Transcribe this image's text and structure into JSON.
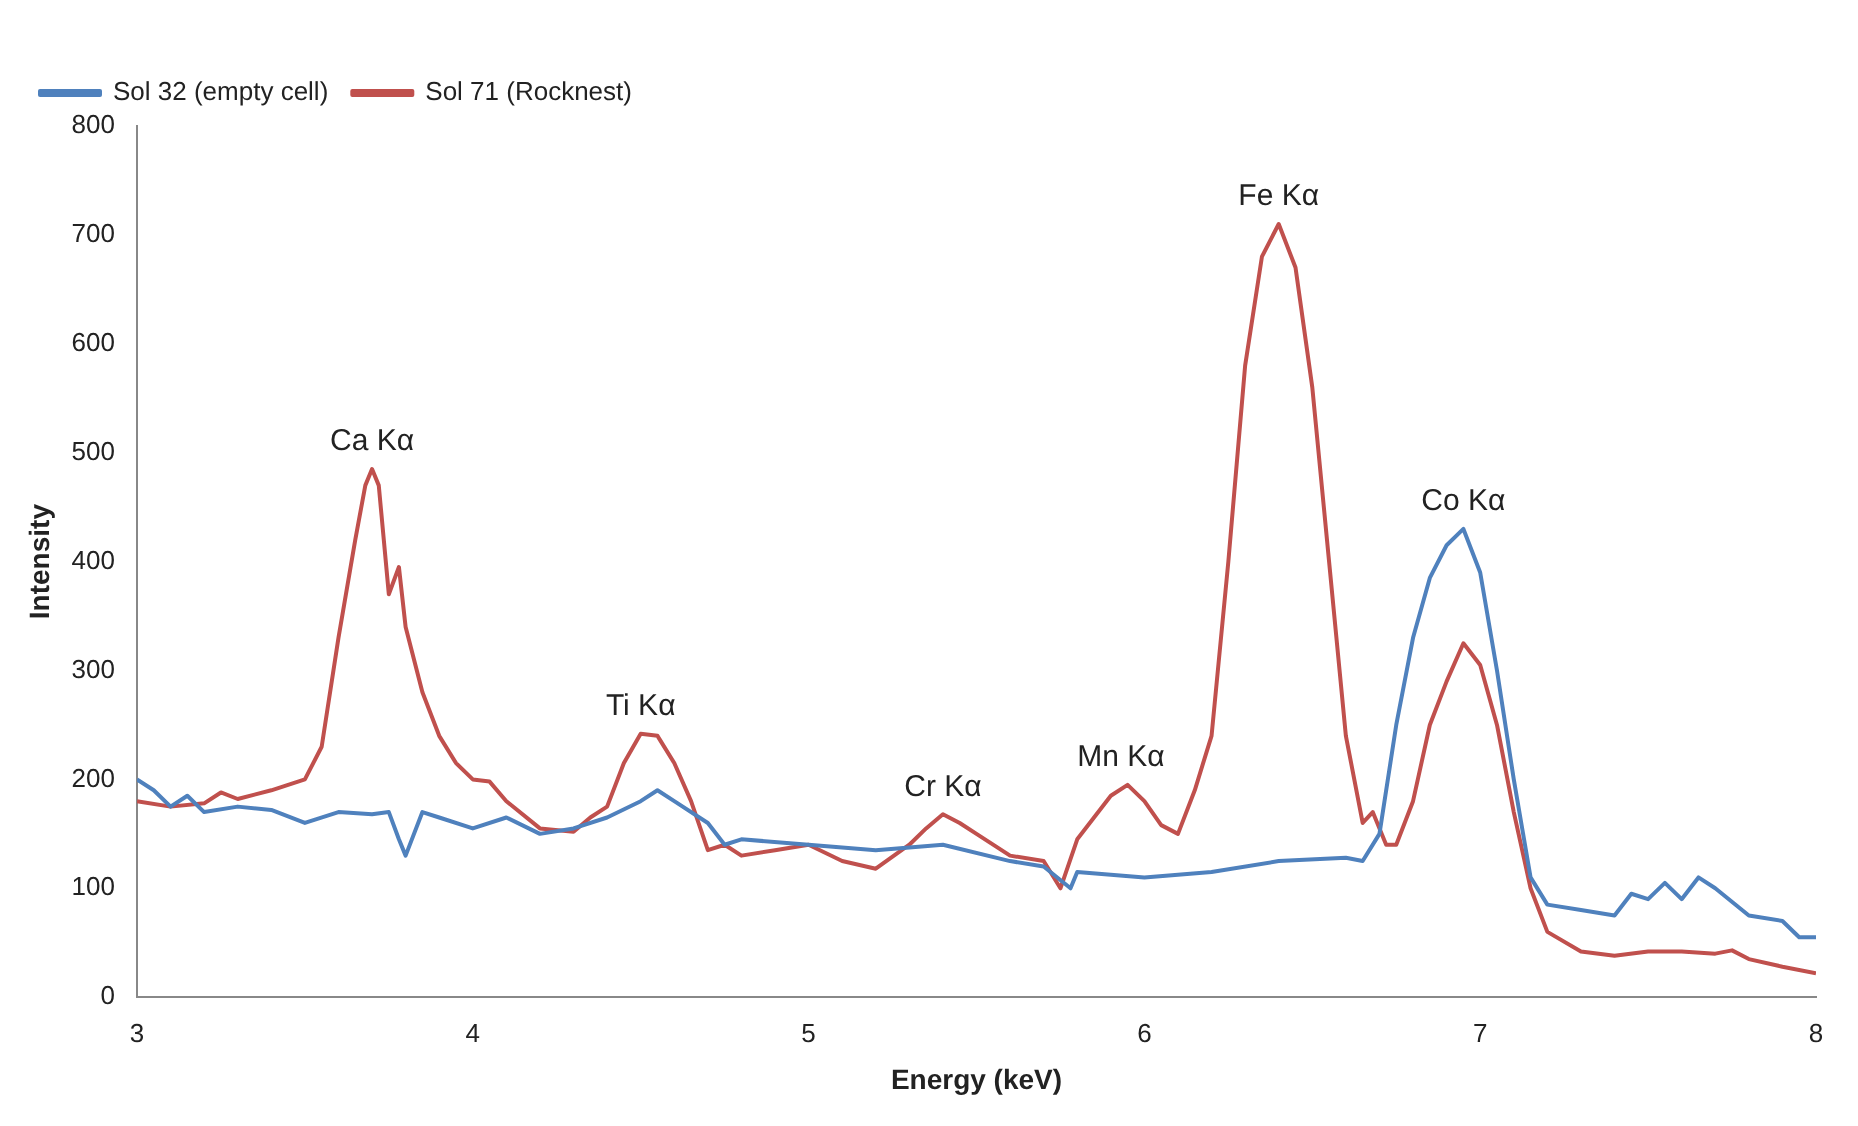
{
  "chart_data": {
    "type": "line",
    "xlabel": "Energy (keV)",
    "ylabel": "Intensity",
    "xlim": [
      3,
      8
    ],
    "xticks": [
      3,
      4,
      5,
      6,
      7,
      8
    ],
    "ylim": [
      0,
      800
    ],
    "yticks": [
      0,
      100,
      200,
      300,
      400,
      500,
      600,
      700,
      800
    ],
    "grid": false,
    "legend": "top left",
    "marker": "none",
    "line_style": "solid",
    "series": [
      {
        "name": "Sol 32 (empty cell)",
        "color": "#4f81bd",
        "x": [
          3.0,
          3.05,
          3.1,
          3.15,
          3.2,
          3.3,
          3.4,
          3.5,
          3.6,
          3.7,
          3.75,
          3.78,
          3.8,
          3.85,
          3.9,
          4.0,
          4.1,
          4.2,
          4.3,
          4.4,
          4.5,
          4.55,
          4.6,
          4.7,
          4.75,
          4.8,
          5.0,
          5.2,
          5.4,
          5.6,
          5.7,
          5.78,
          5.8,
          6.0,
          6.2,
          6.4,
          6.6,
          6.65,
          6.7,
          6.75,
          6.8,
          6.85,
          6.9,
          6.95,
          7.0,
          7.05,
          7.1,
          7.15,
          7.2,
          7.3,
          7.4,
          7.45,
          7.5,
          7.55,
          7.6,
          7.65,
          7.7,
          7.8,
          7.9,
          7.95,
          8.0
        ],
        "values": [
          200,
          190,
          175,
          185,
          170,
          175,
          172,
          160,
          170,
          168,
          170,
          145,
          130,
          170,
          165,
          155,
          165,
          150,
          155,
          165,
          180,
          190,
          180,
          160,
          140,
          145,
          140,
          135,
          140,
          125,
          120,
          100,
          115,
          110,
          115,
          125,
          128,
          125,
          150,
          250,
          330,
          385,
          415,
          430,
          390,
          300,
          200,
          110,
          85,
          80,
          75,
          95,
          90,
          105,
          90,
          110,
          100,
          75,
          70,
          55,
          55
        ]
      },
      {
        "name": "Sol 71 (Rocknest)",
        "color": "#c0504d",
        "x": [
          3.0,
          3.1,
          3.2,
          3.25,
          3.3,
          3.4,
          3.5,
          3.55,
          3.6,
          3.65,
          3.68,
          3.7,
          3.72,
          3.75,
          3.78,
          3.8,
          3.85,
          3.9,
          3.95,
          4.0,
          4.05,
          4.1,
          4.2,
          4.3,
          4.35,
          4.4,
          4.45,
          4.5,
          4.55,
          4.6,
          4.65,
          4.7,
          4.75,
          4.8,
          4.9,
          5.0,
          5.1,
          5.2,
          5.3,
          5.35,
          5.4,
          5.45,
          5.5,
          5.6,
          5.7,
          5.75,
          5.8,
          5.9,
          5.95,
          6.0,
          6.05,
          6.1,
          6.15,
          6.2,
          6.25,
          6.3,
          6.35,
          6.4,
          6.45,
          6.5,
          6.55,
          6.6,
          6.65,
          6.68,
          6.72,
          6.75,
          6.8,
          6.85,
          6.9,
          6.95,
          7.0,
          7.05,
          7.1,
          7.15,
          7.2,
          7.3,
          7.4,
          7.5,
          7.6,
          7.7,
          7.75,
          7.8,
          7.9,
          8.0
        ],
        "values": [
          180,
          175,
          178,
          188,
          182,
          190,
          200,
          230,
          330,
          420,
          470,
          485,
          470,
          370,
          395,
          340,
          280,
          240,
          215,
          200,
          198,
          180,
          155,
          152,
          165,
          175,
          215,
          242,
          240,
          215,
          180,
          135,
          140,
          130,
          135,
          140,
          125,
          118,
          140,
          155,
          168,
          160,
          150,
          130,
          125,
          100,
          145,
          185,
          195,
          180,
          158,
          150,
          190,
          240,
          400,
          580,
          680,
          710,
          670,
          560,
          400,
          240,
          160,
          170,
          140,
          140,
          180,
          250,
          290,
          325,
          305,
          250,
          170,
          100,
          60,
          42,
          38,
          42,
          42,
          40,
          43,
          35,
          28,
          22
        ]
      }
    ],
    "annotations": [
      {
        "text": "Ca Kα",
        "x": 3.7,
        "y": 485
      },
      {
        "text": "Ti Kα",
        "x": 4.5,
        "y": 242
      },
      {
        "text": "Cr Kα",
        "x": 5.4,
        "y": 168
      },
      {
        "text": "Mn Kα",
        "x": 5.93,
        "y": 195
      },
      {
        "text": "Fe Kα",
        "x": 6.4,
        "y": 710
      },
      {
        "text": "Co Kα",
        "x": 6.95,
        "y": 430
      }
    ]
  }
}
